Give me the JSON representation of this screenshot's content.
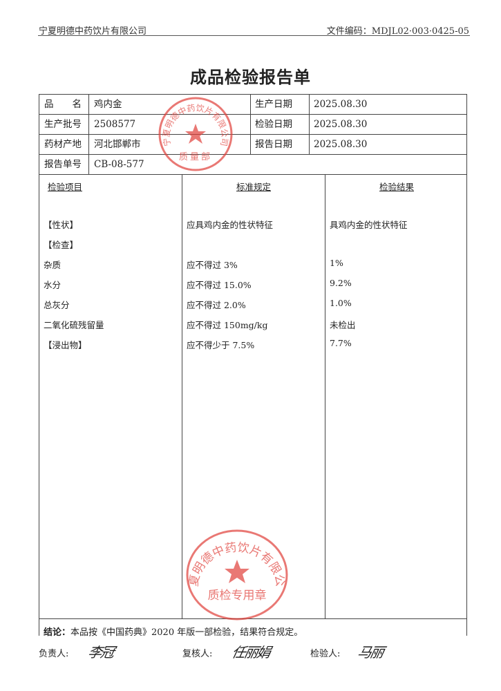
{
  "header": {
    "company": "宁夏明德中药饮片有限公司",
    "doc_no": "文件编码：MDJL02·003·0425-05"
  },
  "title": "成品检验报告单",
  "info": {
    "rows": [
      {
        "label1": "品　　名",
        "value1": "鸡内金",
        "label2": "生产日期",
        "value2": "2025.08.30"
      },
      {
        "label1": "生产批号",
        "value1": "2508577",
        "label2": "检验日期",
        "value2": "2025.08.30"
      },
      {
        "label1": "药材产地",
        "value1": "河北邯郸市",
        "label2": "报告日期",
        "value2": "2025.08.30"
      }
    ],
    "report_no_label": "报告单号",
    "report_no": "CB-08-577"
  },
  "body": {
    "headers": [
      "检验项目",
      "标准规定",
      "检验结果"
    ],
    "rows": [
      {
        "item": "【性状】",
        "standard": "应具鸡内金的性状特征",
        "result": "具鸡内金的性状特征"
      },
      {
        "item": "【检查】",
        "standard": "",
        "result": ""
      },
      {
        "item": "杂质",
        "standard": "应不得过 3%",
        "result": "1%"
      },
      {
        "item": "水分",
        "standard": "应不得过 15.0%",
        "result": "9.2%"
      },
      {
        "item": "总灰分",
        "standard": "应不得过 2.0%",
        "result": "1.0%"
      },
      {
        "item": "二氧化硫残留量",
        "standard": "应不得过 150mg/kg",
        "result": "未检出"
      },
      {
        "item": "【浸出物】",
        "standard": "应不得少于 7.5%",
        "result": "7.7%"
      }
    ]
  },
  "conclusion": {
    "label": "结论：",
    "text": "本品按《中国药典》2020 年版一部检验，结果符合规定。"
  },
  "signatures": {
    "responsible_label": "负责人:",
    "reviewer_label": "复核人:",
    "inspector_label": "检验人:",
    "responsible": "李冠",
    "reviewer": "任丽娟",
    "inspector": "马丽"
  },
  "stamps": [
    {
      "text": "宁夏明德中药饮片有限公司",
      "bottom": "质量部",
      "color": "#e0403a"
    },
    {
      "text": "宁夏明德中药饮片有限公司",
      "bottom": "质检专用章",
      "color": "#e0403a"
    }
  ]
}
